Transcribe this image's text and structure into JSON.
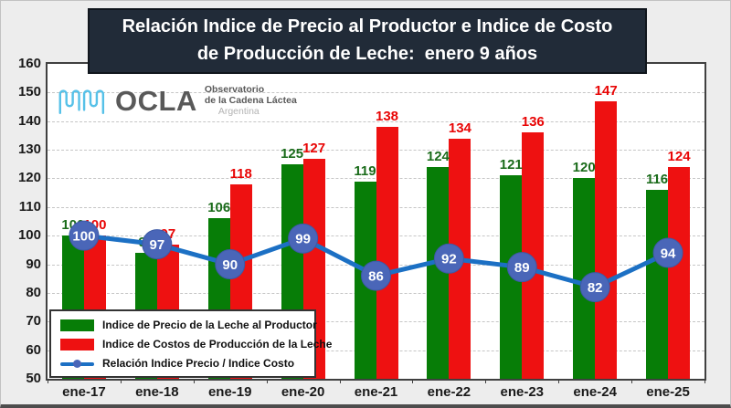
{
  "title": {
    "line1": "Relación Indice de Precio al Productor e Indice de Costo",
    "line2": "de Producción de Leche:  enero 9 años"
  },
  "logo": {
    "name": "OCLA",
    "tagline1": "Observatorio",
    "tagline2": "de la Cadena Láctea",
    "tagline3": "Argentina"
  },
  "chart_data": {
    "type": "bar",
    "subtype": "grouped bars with overlaid line",
    "title": "Relación Indice de Precio al Productor e Indice de Costo de Producción de Leche: enero 9 años",
    "categories": [
      "ene-17",
      "ene-18",
      "ene-19",
      "ene-20",
      "ene-21",
      "ene-22",
      "ene-23",
      "ene-24",
      "ene-25"
    ],
    "series": [
      {
        "name": "Indice de Precio de la Leche al Productor",
        "type": "bar",
        "color": "#077d07",
        "label_color": "#1a6b1a",
        "values": [
          100,
          94,
          106,
          125,
          119,
          124,
          121,
          120,
          116
        ]
      },
      {
        "name": "Indice de Costos de Producción de la Leche",
        "type": "bar",
        "color": "#ee1111",
        "label_color": "#e80505",
        "values": [
          100,
          97,
          118,
          127,
          138,
          134,
          136,
          147,
          124
        ]
      },
      {
        "name": "Relación Indice Precio / Indice Costo",
        "type": "line",
        "color": "#1c70c4",
        "marker_fill": "#4a66b8",
        "marker_stroke": "#3c59a6",
        "marker_text_color": "#ffffff",
        "values": [
          100,
          97,
          90,
          99,
          86,
          92,
          89,
          82,
          94
        ]
      }
    ],
    "ylim": [
      50,
      160
    ],
    "yticks": [
      160,
      150,
      140,
      130,
      120,
      110,
      100,
      90,
      80,
      70,
      60,
      50
    ],
    "grid": "horizontal dashed",
    "legend_position": "bottom-left inside plot"
  },
  "colors": {
    "background": "#ededed",
    "plot_background": "#ffffff",
    "title_background": "#212b38",
    "title_text": "#ffffff",
    "plot_border": "#404040",
    "gridline": "#c6c6c6",
    "logo_blue": "#56c1e8",
    "logo_gray": "#595959",
    "logo_light_gray": "#b3b3b3"
  }
}
